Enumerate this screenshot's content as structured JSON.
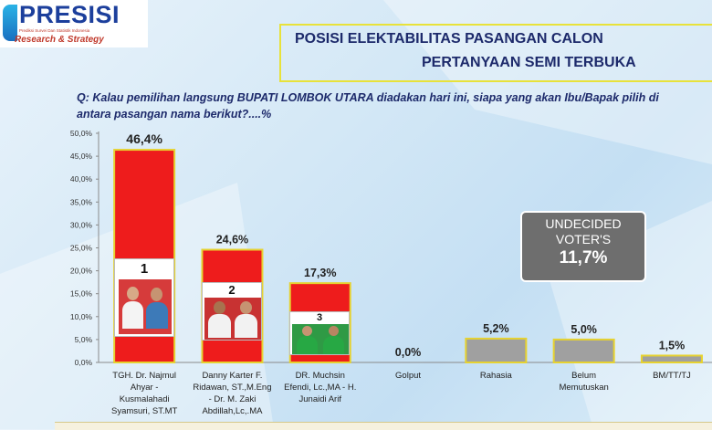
{
  "brand": {
    "name": "PRESISI",
    "tagline": "Prediksi Survei Dan Statistik Indonesia",
    "subtitle": "Research & Strategy"
  },
  "title": {
    "line1": "POSISI ELEKTABILITAS PASANGAN CALON",
    "line2": "PERTANYAAN SEMI TERBUKA"
  },
  "question": "Q: Kalau pemilihan langsung BUPATI LOMBOK UTARA diadakan hari ini, siapa yang akan Ibu/Bapak pilih di antara pasangan nama berikut?....%",
  "undecided": {
    "line1": "UNDECIDED",
    "line2": "VOTER'S",
    "value": "11,7%"
  },
  "candidate_cards": [
    {
      "number": "1"
    },
    {
      "number": "2"
    },
    {
      "number": "3"
    }
  ],
  "chart_data": {
    "type": "bar",
    "categories": [
      "TGH. Dr. Najmul Ahyar - Kusmalahadi Syamsuri, ST.MT",
      "Danny Karter F. Ridawan, ST.,M.Eng - Dr. M. Zaki Abdillah,Lc,.MA",
      "DR. Muchsin Efendi, Lc.,MA - H. Junaidi Arif",
      "Golput",
      "Rahasia",
      "Belum Memutuskan",
      "BM/TT/TJ"
    ],
    "category_lines": [
      [
        "TGH. Dr. Najmul",
        "Ahyar -",
        "Kusmalahadi",
        "Syamsuri, ST.MT"
      ],
      [
        "Danny Karter F.",
        "Ridawan, ST.,M.Eng",
        "- Dr. M. Zaki",
        "Abdillah,Lc,.MA"
      ],
      [
        "DR. Muchsin",
        "Efendi, Lc.,MA - H.",
        "Junaidi Arif"
      ],
      [
        "Golput"
      ],
      [
        "Rahasia"
      ],
      [
        "Belum",
        "Memutuskan"
      ],
      [
        "BM/TT/TJ"
      ]
    ],
    "values": [
      46.4,
      24.6,
      17.3,
      0.0,
      5.2,
      5.0,
      1.5
    ],
    "data_labels": [
      "46,4%",
      "24,6%",
      "17,3%",
      "0,0%",
      "5,2%",
      "5,0%",
      "1,5%"
    ],
    "colors": [
      "#ee1c1c",
      "#ee1c1c",
      "#ee1c1c",
      "#a0a0a0",
      "#a0a0a0",
      "#a0a0a0",
      "#a0a0a0"
    ],
    "bar_border": "#e6d230",
    "yticks": [
      "0,0%",
      "5,0%",
      "10,0%",
      "15,0%",
      "20,0%",
      "25,0%",
      "30,0%",
      "35,0%",
      "40,0%",
      "45,0%",
      "50,0%"
    ],
    "ylim": [
      0,
      50
    ],
    "grid": false,
    "legend": "none"
  }
}
